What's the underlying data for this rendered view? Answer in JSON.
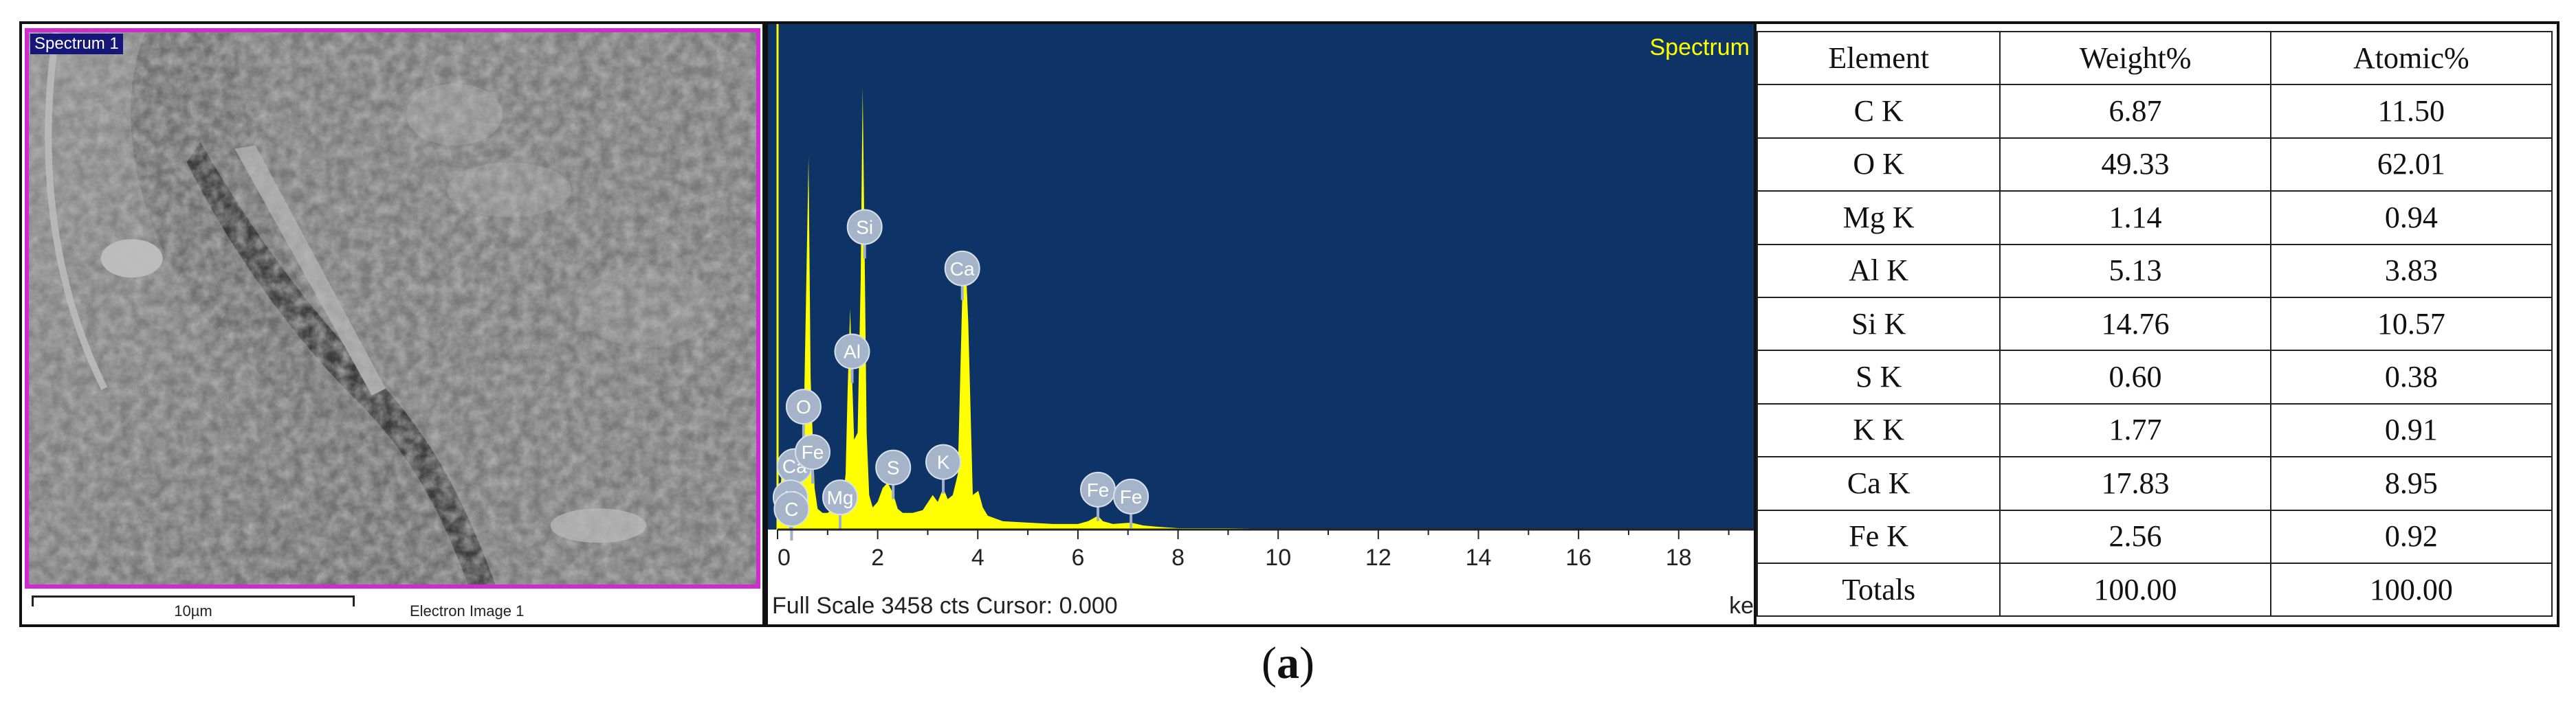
{
  "sem": {
    "spectrum_label": "Spectrum 1",
    "scale_label": "10µm",
    "image_label": "Electron Image 1",
    "frame_color": "#d22ad2"
  },
  "chart_data": {
    "type": "line",
    "title": "Spectrum",
    "xlabel": "ke",
    "xlim": [
      0,
      19.5
    ],
    "ylim": [
      0,
      3458
    ],
    "x_ticks": [
      0,
      2,
      4,
      6,
      8,
      10,
      12,
      14,
      16,
      18
    ],
    "full_scale_text": "Full Scale 3458 cts Cursor: 0.000",
    "background_color": "#0e3366",
    "series_color": "#ffff00",
    "series": [
      {
        "x": [
          0.0,
          0.1,
          0.2,
          0.26,
          0.3,
          0.35,
          0.4,
          0.45,
          0.52,
          0.56,
          0.62,
          0.66,
          0.7,
          0.74,
          0.8,
          0.9,
          1.0,
          1.1,
          1.2,
          1.26,
          1.3,
          1.36,
          1.4,
          1.45,
          1.49,
          1.53,
          1.6,
          1.66,
          1.7,
          1.74,
          1.78,
          1.83,
          1.9,
          2.0,
          2.1,
          2.2,
          2.31,
          2.4,
          2.5,
          2.7,
          2.9,
          3.1,
          3.2,
          3.31,
          3.4,
          3.5,
          3.6,
          3.69,
          3.75,
          3.81,
          3.9,
          4.01,
          4.1,
          4.2,
          4.5,
          5.0,
          5.5,
          6.0,
          6.2,
          6.4,
          6.5,
          6.7,
          7.06,
          7.3,
          7.6,
          8.0,
          9.0,
          10.0,
          12.0,
          14.0,
          16.0,
          18.0,
          19.5
        ],
        "y": [
          0,
          500,
          250,
          600,
          350,
          250,
          400,
          500,
          700,
          1500,
          2700,
          1100,
          700,
          300,
          150,
          120,
          120,
          150,
          280,
          300,
          220,
          400,
          1000,
          1600,
          1100,
          650,
          700,
          1800,
          3200,
          2000,
          700,
          250,
          160,
          200,
          300,
          340,
          260,
          150,
          120,
          120,
          140,
          250,
          200,
          300,
          220,
          250,
          400,
          1700,
          2000,
          1500,
          250,
          280,
          160,
          100,
          60,
          50,
          40,
          40,
          60,
          100,
          60,
          40,
          50,
          30,
          20,
          10,
          10,
          5,
          5,
          5,
          5,
          5,
          5
        ]
      }
    ],
    "peak_labels": [
      {
        "label": "Ca",
        "kev": 0.34
      },
      {
        "label": "Si",
        "kev": 1.74
      },
      {
        "label": "O",
        "kev": 0.52
      },
      {
        "label": "Fe",
        "kev": 0.7
      },
      {
        "label": "Ca",
        "kev": 3.69
      },
      {
        "label": "K",
        "kev": 3.31
      },
      {
        "label": "Al",
        "kev": 1.49
      },
      {
        "label": "Mg",
        "kev": 1.25
      },
      {
        "label": "K",
        "kev": 0.26
      },
      {
        "label": "C",
        "kev": 0.28
      },
      {
        "label": "S",
        "kev": 2.31
      },
      {
        "label": "Fe",
        "kev": 6.4
      },
      {
        "label": "Fe",
        "kev": 7.06
      }
    ]
  },
  "table": {
    "headers": [
      "Element",
      "Weight%",
      "Atomic%"
    ],
    "rows": [
      [
        "C K",
        "6.87",
        "11.50"
      ],
      [
        "O K",
        "49.33",
        "62.01"
      ],
      [
        "Mg K",
        "1.14",
        "0.94"
      ],
      [
        "Al K",
        "5.13",
        "3.83"
      ],
      [
        "Si K",
        "14.76",
        "10.57"
      ],
      [
        "S K",
        "0.60",
        "0.38"
      ],
      [
        "K K",
        "1.77",
        "0.91"
      ],
      [
        "Ca K",
        "17.83",
        "8.95"
      ],
      [
        "Fe K",
        "2.56",
        "0.92"
      ],
      [
        "Totals",
        "100.00",
        "100.00"
      ]
    ]
  },
  "caption": {
    "open": "(",
    "letter": "a",
    "close": ")"
  }
}
